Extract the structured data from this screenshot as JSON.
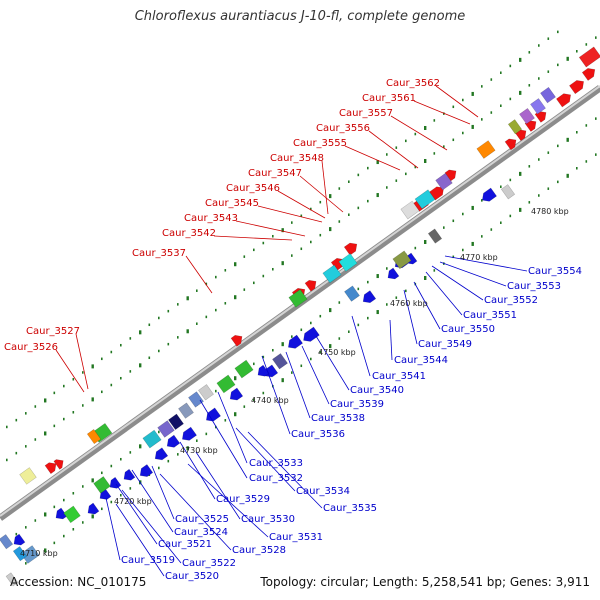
{
  "title": "Chloroflexus aurantiacus J-10-fl, complete genome",
  "accession": "Accession: NC_010175",
  "stats": "Topology: circular; Length: 5,258,541 bp; Genes: 3,911",
  "colors": {
    "upper_label": "#cc0000",
    "lower_label": "#0000cc",
    "backbone": "#9a9a9a",
    "forward_gene": "#ee1111",
    "reverse_gene": "#1111dd",
    "tick": "#227722"
  },
  "kbp_markers": [
    "4710 kbp",
    "4720 kbp",
    "4730 kbp",
    "4740 kbp",
    "4750 kbp",
    "4760 kbp",
    "4770 kbp",
    "4780 kbp"
  ],
  "upper_labels": [
    "Caur_3562",
    "Caur_3561",
    "Caur_3557",
    "Caur_3556",
    "Caur_3555",
    "Caur_3548",
    "Caur_3547",
    "Caur_3546",
    "Caur_3545",
    "Caur_3543",
    "Caur_3542",
    "Caur_3537",
    "Caur_3527",
    "Caur_3526"
  ],
  "lower_labels": [
    "Caur_3554",
    "Caur_3553",
    "Caur_3552",
    "Caur_3551",
    "Caur_3550",
    "Caur_3549",
    "Caur_3544",
    "Caur_3541",
    "Caur_3540",
    "Caur_3539",
    "Caur_3538",
    "Caur_3536",
    "Caur_3533",
    "Caur_3532",
    "Caur_3534",
    "Caur_3535",
    "Caur_3529",
    "Caur_3530",
    "Caur_3525",
    "Caur_3531",
    "Caur_3524",
    "Caur_3521",
    "Caur_3528",
    "Caur_3522",
    "Caur_3519",
    "Caur_3520"
  ]
}
